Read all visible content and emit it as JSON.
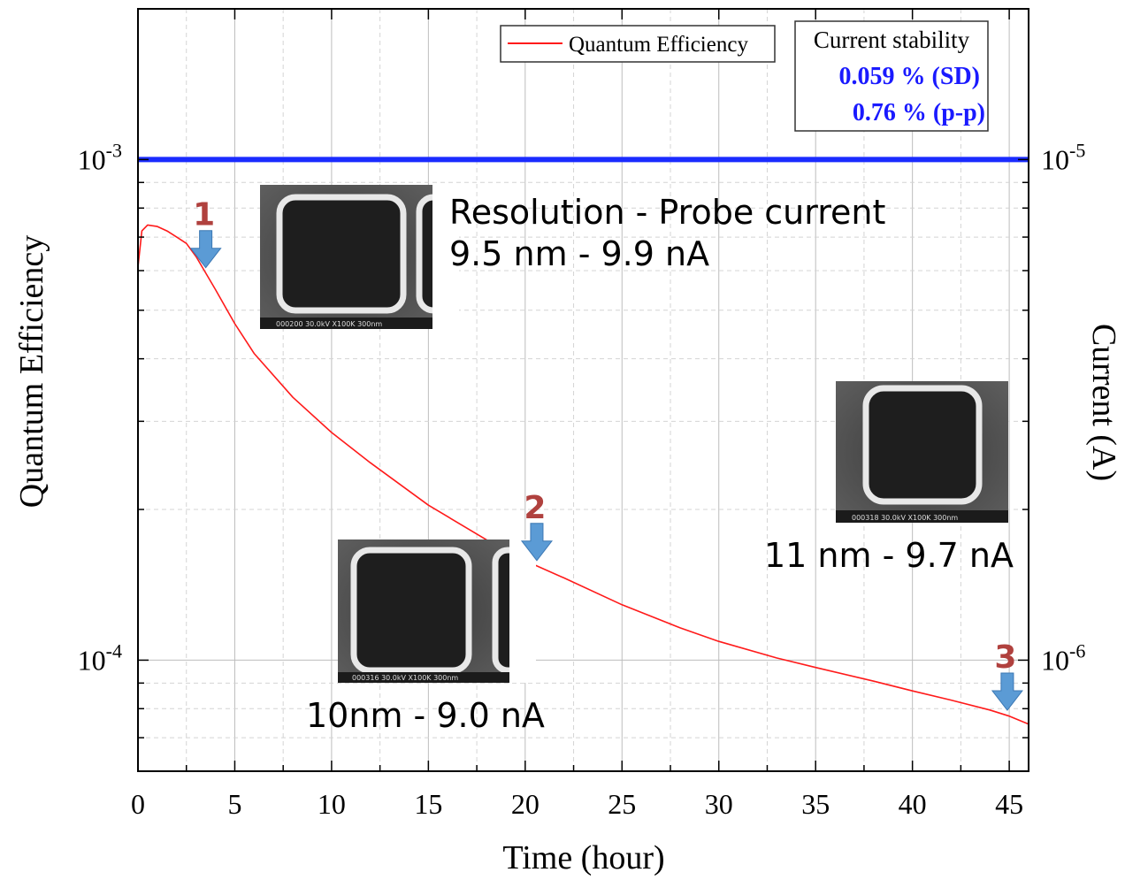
{
  "chart_data": {
    "type": "line",
    "title": "",
    "xlabel": "Time (hour)",
    "ylabel_left": "Quantum Efficiency",
    "ylabel_right": "Current (A)",
    "xlim": [
      0,
      46
    ],
    "ylim_left": [
      6e-05,
      0.002
    ],
    "ylim_right": [
      6e-07,
      2e-05
    ],
    "y_scale": "log",
    "grid": true,
    "x_ticks": [
      {
        "value": 0,
        "label": "0"
      },
      {
        "value": 5,
        "label": "5"
      },
      {
        "value": 10,
        "label": "10"
      },
      {
        "value": 15,
        "label": "15"
      },
      {
        "value": 20,
        "label": "20"
      },
      {
        "value": 25,
        "label": "25"
      },
      {
        "value": 30,
        "label": "30"
      },
      {
        "value": 35,
        "label": "35"
      },
      {
        "value": 40,
        "label": "40"
      },
      {
        "value": 45,
        "label": "45"
      }
    ],
    "y_ticks_left": [
      {
        "value": 0.0001,
        "base": "10",
        "exp": "-4"
      },
      {
        "value": 0.001,
        "base": "10",
        "exp": "-3"
      }
    ],
    "y_ticks_right": [
      {
        "value": 1e-06,
        "base": "10",
        "exp": "-6"
      },
      {
        "value": 1e-05,
        "base": "10",
        "exp": "-5"
      }
    ],
    "legend": {
      "position": "top-center-right",
      "label": "Quantum Efficiency"
    },
    "series": [
      {
        "name": "Quantum Efficiency",
        "axis": "left",
        "color": "#ff1a1a",
        "x": [
          0,
          0.2,
          0.5,
          1,
          1.5,
          2,
          2.5,
          3,
          4,
          5,
          6,
          8,
          10,
          12,
          15,
          18,
          20,
          22,
          25,
          28,
          30,
          33,
          35,
          38,
          40,
          42,
          44,
          45,
          46
        ],
        "y": [
          0.00061,
          0.00072,
          0.00074,
          0.000735,
          0.00072,
          0.0007,
          0.00068,
          0.00064,
          0.00055,
          0.00047,
          0.00041,
          0.000335,
          0.000285,
          0.000248,
          0.000204,
          0.000174,
          0.000158,
          0.000146,
          0.000129,
          0.000116,
          0.000109,
          0.000101,
          9.67e-05,
          9.08e-05,
          8.68e-05,
          8.32e-05,
          7.95e-05,
          7.73e-05,
          7.45e-05
        ]
      },
      {
        "name": "",
        "axis": "right",
        "color": "#1a2bff",
        "x": [
          0,
          46
        ],
        "y": [
          1e-05,
          1e-05
        ]
      }
    ],
    "annotations": {
      "stability_box": {
        "title": "Current stability",
        "sd": "0.059 % (SD)",
        "pp": "0.76 % (p-p)",
        "color": "#1a1aff"
      },
      "markers": [
        {
          "label": "1",
          "x": 3.5
        },
        {
          "label": "2",
          "x": 20.6
        },
        {
          "label": "3",
          "x": 44.9
        }
      ],
      "marker_color": "#b0413e",
      "arrow_color": "#5b9bd5",
      "resolution_header": "Resolution - Probe current",
      "captions": [
        "9.5 nm - 9.9 nA",
        "11 nm - 9.7 nA",
        "10nm - 9.0 nA"
      ],
      "sem_images": [
        {
          "footer": "000200  30.0kV  X100K  300nm"
        },
        {
          "footer": "000318  30.0kV  X100K  300nm"
        },
        {
          "footer": "000316  30.0kV  X100K  300nm"
        }
      ]
    }
  }
}
